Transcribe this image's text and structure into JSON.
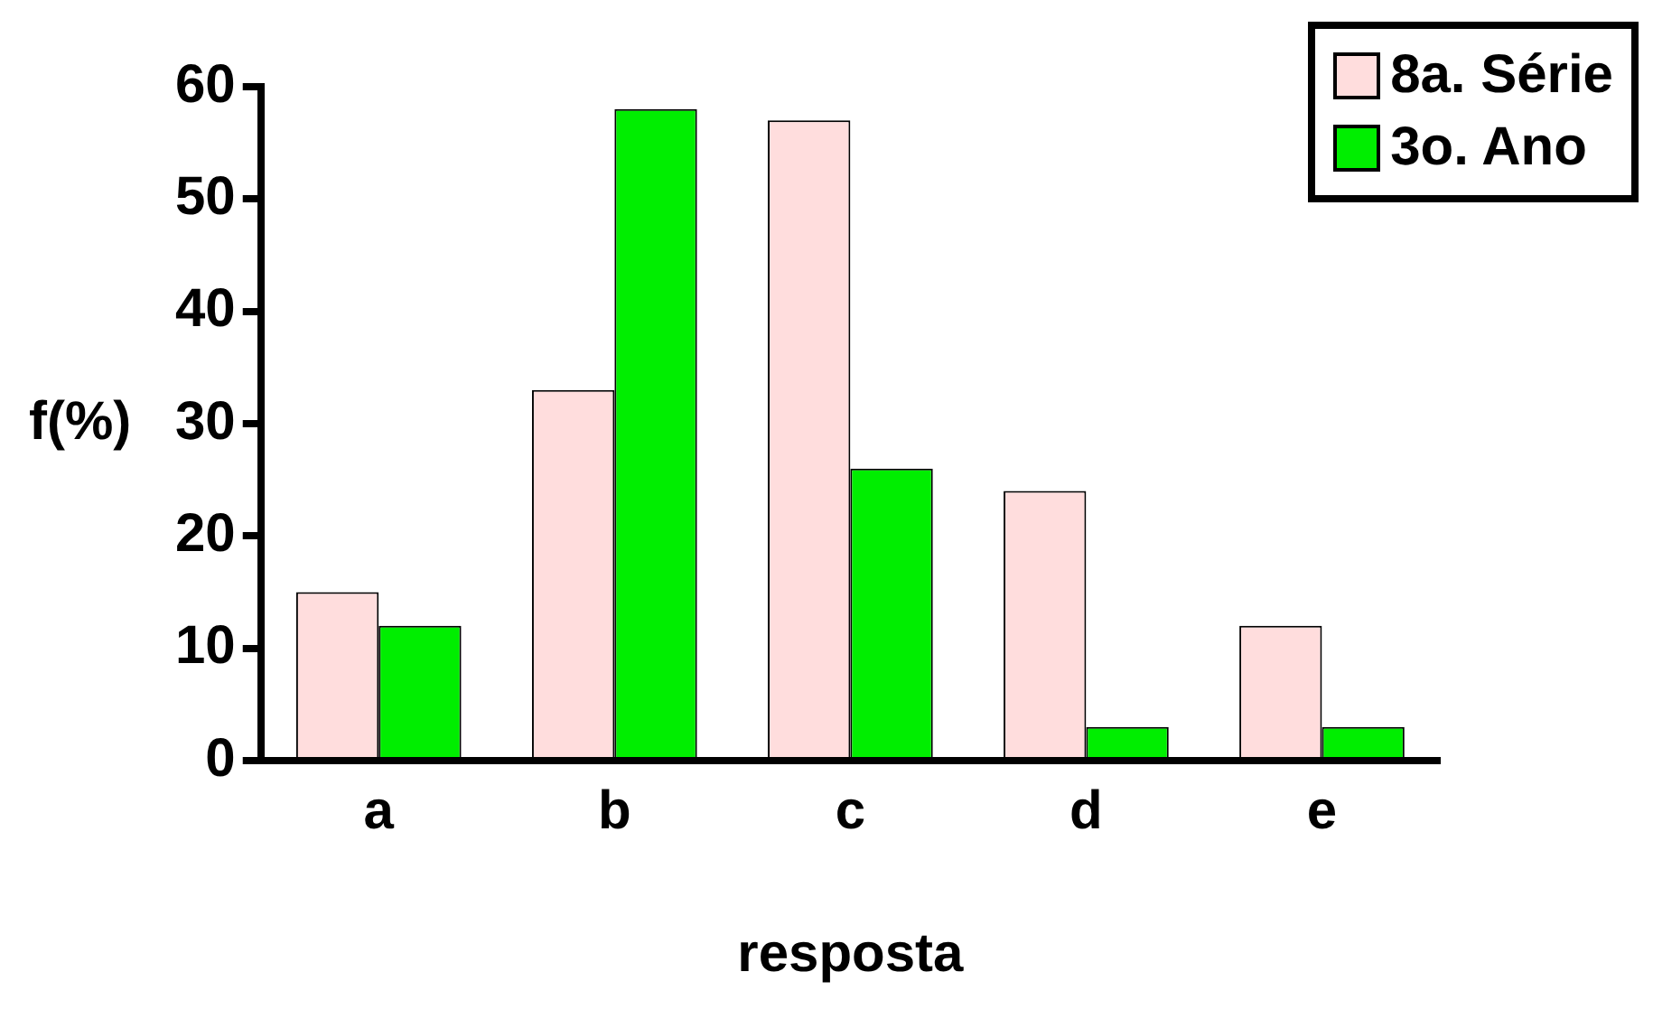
{
  "chart_data": {
    "type": "bar",
    "xlabel": "resposta",
    "ylabel": "f(%)",
    "categories": [
      "a",
      "b",
      "c",
      "d",
      "e"
    ],
    "series": [
      {
        "name": "8a. Série",
        "color": "#ffdddd",
        "values": [
          15,
          33,
          57,
          24,
          12
        ]
      },
      {
        "name": "3o. Ano",
        "color": "#00ee00",
        "values": [
          12,
          58,
          26,
          3,
          3
        ]
      }
    ],
    "ylim": [
      0,
      60
    ],
    "yticks": [
      0,
      10,
      20,
      30,
      40,
      50,
      60
    ],
    "grid": false,
    "legend": "top right"
  }
}
